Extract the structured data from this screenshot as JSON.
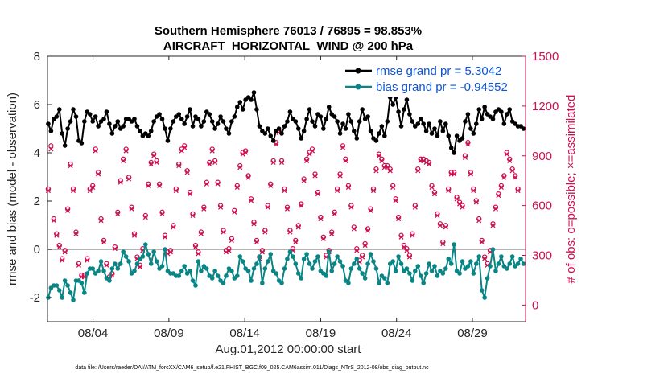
{
  "chart_data": {
    "type": "line",
    "title_line1": "Southern Hemisphere 76013 / 76895 = 98.853%",
    "title_line2": "AIRCRAFT_HORIZONTAL_WIND @ 200 hPa",
    "xlabel": "Aug.01,2012 00:00:00 start",
    "ylabel_left": "rmse and bias (model - observation)",
    "ylabel_right": "# of obs: o=possible; ×=assimilated",
    "footer": "data file: /Users/raeder/DAI/ATM_forcXX/CAM6_setup/f.e21.FHIST_BGC.f09_025.CAM6assim.011/Diags_NTrS_2012-08/obs_diag_output.nc",
    "x_range_days": [
      1.0,
      32.5
    ],
    "x_ticks": [
      {
        "day": 4,
        "label": "08/04"
      },
      {
        "day": 9,
        "label": "08/09"
      },
      {
        "day": 14,
        "label": "08/14"
      },
      {
        "day": 19,
        "label": "08/19"
      },
      {
        "day": 24,
        "label": "08/24"
      },
      {
        "day": 29,
        "label": "08/29"
      }
    ],
    "y_left": {
      "range": [
        -3,
        8
      ],
      "ticks": [
        "-2",
        "0",
        "2",
        "4",
        "6",
        "8"
      ]
    },
    "y_right": {
      "range": [
        -100,
        1500
      ],
      "ticks": [
        "0",
        "300",
        "600",
        "900",
        "1200",
        "1500"
      ]
    },
    "legend": [
      {
        "label": "rmse grand pr = 5.3042",
        "color": "#000000"
      },
      {
        "label": "bias grand pr = -0.94552",
        "color": "#0a8585"
      }
    ],
    "series": [
      {
        "name": "rmse",
        "color": "#000000",
        "values": [
          5.2,
          4.9,
          5.4,
          5.5,
          5.8,
          4.8,
          4.3,
          5.0,
          5.3,
          5.8,
          5.5,
          4.5,
          4.4,
          5.3,
          5.7,
          5.6,
          5.3,
          5.5,
          5.1,
          5.3,
          5.4,
          5.7,
          5.2,
          4.8,
          5.1,
          5.3,
          5.0,
          5.1,
          5.4,
          5.4,
          5.3,
          5.4,
          5.1,
          4.9,
          4.7,
          4.8,
          4.7,
          4.9,
          5.3,
          5.5,
          5.6,
          5.4,
          5.0,
          4.5,
          5.0,
          5.3,
          5.5,
          5.6,
          5.4,
          5.2,
          5.5,
          5.8,
          5.1,
          5.5,
          5.4,
          5.1,
          5.3,
          5.7,
          5.6,
          5.3,
          5.0,
          5.2,
          5.5,
          5.3,
          5.0,
          4.8,
          5.3,
          5.5,
          5.9,
          6.1,
          5.8,
          6.2,
          6.3,
          6.2,
          6.5,
          5.8,
          5.1,
          4.9,
          4.8,
          5.0,
          4.7,
          4.5,
          4.9,
          5.0,
          4.8,
          5.1,
          5.3,
          5.7,
          5.4,
          5.3,
          5.0,
          4.6,
          4.9,
          5.4,
          5.8,
          5.3,
          5.1,
          5.6,
          5.5,
          5.0,
          5.4,
          5.9,
          5.6,
          5.5,
          5.3,
          4.8,
          5.2,
          5.0,
          5.6,
          5.3,
          4.9,
          4.6,
          5.3,
          5.8,
          5.4,
          5.5,
          4.9,
          4.6,
          4.5,
          4.8,
          5.1,
          4.7,
          5.3,
          6.3,
          6.0,
          6.3,
          5.7,
          5.1,
          5.8,
          6.2,
          5.6,
          5.3,
          5.1,
          5.2,
          5.4,
          5.2,
          4.9,
          5.2,
          4.8,
          5.0,
          4.7,
          5.3,
          4.9,
          5.2,
          4.7,
          4.2,
          4.0,
          4.7,
          4.5,
          4.6,
          5.3,
          5.6,
          5.0,
          4.8,
          5.2,
          5.8,
          5.4,
          5.9,
          5.6,
          5.5,
          5.4,
          5.7,
          5.8,
          5.7,
          5.2,
          5.6,
          5.8,
          5.3,
          5.2,
          5.1,
          5.1,
          5.0
        ]
      },
      {
        "name": "bias",
        "color": "#0a8585",
        "values": [
          -2.0,
          -1.6,
          -1.5,
          -1.5,
          -1.7,
          -2.0,
          -1.3,
          -1.5,
          -1.8,
          -2.1,
          -1.3,
          -1.3,
          -1.4,
          -1.8,
          -1.0,
          -0.8,
          -0.8,
          -1.0,
          -0.9,
          -0.5,
          -0.9,
          -1.2,
          -1.3,
          -0.8,
          -0.6,
          -0.8,
          -0.6,
          -0.1,
          -0.3,
          -0.5,
          -1.0,
          -0.9,
          -0.6,
          -0.4,
          -0.3,
          0.2,
          -0.2,
          -0.6,
          -0.1,
          -0.5,
          -0.8,
          -0.7,
          0.0,
          -0.9,
          -1.0,
          -1.0,
          -1.1,
          -1.1,
          -0.9,
          -0.7,
          -1.0,
          -0.9,
          -1.3,
          -1.5,
          -0.5,
          -0.9,
          -0.7,
          -0.8,
          -1.1,
          -1.2,
          -0.9,
          -1.1,
          -1.3,
          -1.4,
          -1.1,
          -0.8,
          -0.9,
          -1.2,
          -1.1,
          -0.3,
          -0.5,
          -0.8,
          -0.9,
          -1.3,
          -0.8,
          -0.6,
          -0.3,
          -1.4,
          -0.8,
          -0.5,
          -0.2,
          -0.9,
          -1.0,
          -1.3,
          -1.4,
          -0.8,
          -0.4,
          -0.1,
          -0.3,
          -0.6,
          -1.0,
          -1.2,
          -0.4,
          -0.2,
          -0.6,
          -0.8,
          -0.5,
          -0.3,
          -0.9,
          -1.0,
          -1.1,
          -0.1,
          -0.9,
          -0.6,
          -0.3,
          -0.5,
          -0.7,
          -1.3,
          -1.4,
          -0.8,
          -0.6,
          -0.4,
          -0.8,
          -1.0,
          -1.2,
          -0.6,
          -0.2,
          -0.5,
          -0.8,
          -1.4,
          -1.1,
          -1.2,
          -1.4,
          -0.6,
          -0.5,
          -0.9,
          -0.3,
          -0.6,
          -0.9,
          -0.8,
          -1.0,
          -1.3,
          -0.9,
          -0.7,
          -1.1,
          -1.4,
          -1.0,
          -0.6,
          -0.9,
          -0.7,
          -1.1,
          -0.9,
          -1.0,
          -0.8,
          -0.4,
          -0.6,
          0.2,
          -0.9,
          -1.0,
          -0.5,
          -0.8,
          -0.7,
          -0.5,
          -1.0,
          -0.6,
          -0.3,
          -1.7,
          -2.0,
          -1.2,
          -0.7,
          0.0,
          -0.9,
          -0.6,
          -0.3,
          -0.7,
          -0.8,
          -0.6,
          -0.3,
          -0.7,
          -0.6,
          -0.4,
          -0.6
        ]
      },
      {
        "name": "obs_possible",
        "color": "#cc1150",
        "values": [
          700,
          960,
          520,
          430,
          360,
          280,
          330,
          580,
          850,
          700,
          440,
          250,
          180,
          180,
          280,
          700,
          720,
          940,
          800,
          520,
          390,
          250,
          170,
          190,
          350,
          560,
          750,
          880,
          940,
          770,
          590,
          430,
          290,
          240,
          340,
          540,
          730,
          860,
          910,
          870,
          730,
          560,
          420,
          320,
          330,
          480,
          700,
          850,
          940,
          960,
          810,
          680,
          550,
          360,
          320,
          440,
          590,
          740,
          860,
          940,
          870,
          740,
          600,
          450,
          330,
          340,
          400,
          570,
          720,
          840,
          920,
          930,
          780,
          640,
          500,
          390,
          290,
          330,
          450,
          600,
          730,
          870,
          980,
          1050,
          870,
          700,
          590,
          450,
          340,
          390,
          480,
          610,
          760,
          880,
          920,
          940,
          790,
          680,
          530,
          410,
          300,
          330,
          440,
          560,
          700,
          790,
          960,
          880,
          720,
          600,
          470,
          340,
          270,
          300,
          370,
          460,
          580,
          700,
          820,
          910,
          880,
          840,
          840,
          820,
          720,
          640,
          530,
          420,
          360,
          340,
          300,
          430,
          600,
          820,
          880,
          880,
          870,
          860,
          720,
          680,
          550,
          490,
          380,
          480,
          700,
          800,
          800,
          650,
          620,
          600,
          900,
          980,
          800,
          700,
          630,
          520,
          390,
          290,
          250,
          330,
          490,
          590,
          670,
          720,
          780,
          920,
          880,
          820,
          780,
          700
        ]
      },
      {
        "name": "obs_assimilated",
        "color": "#cc1150",
        "values": [
          690,
          940,
          510,
          420,
          350,
          270,
          320,
          570,
          840,
          690,
          430,
          240,
          170,
          170,
          270,
          690,
          710,
          930,
          790,
          510,
          380,
          240,
          160,
          180,
          340,
          550,
          740,
          870,
          930,
          760,
          580,
          420,
          280,
          230,
          330,
          530,
          720,
          850,
          900,
          860,
          720,
          550,
          410,
          310,
          320,
          470,
          690,
          840,
          930,
          950,
          800,
          670,
          540,
          350,
          310,
          430,
          580,
          730,
          850,
          930,
          860,
          730,
          590,
          440,
          320,
          330,
          390,
          560,
          710,
          830,
          910,
          920,
          770,
          630,
          490,
          380,
          280,
          320,
          440,
          590,
          720,
          860,
          970,
          1040,
          860,
          690,
          580,
          440,
          330,
          380,
          470,
          600,
          750,
          870,
          910,
          930,
          780,
          670,
          520,
          400,
          290,
          320,
          430,
          550,
          690,
          780,
          950,
          870,
          710,
          590,
          460,
          330,
          260,
          290,
          360,
          450,
          570,
          690,
          810,
          900,
          870,
          830,
          830,
          810,
          710,
          630,
          520,
          410,
          350,
          330,
          290,
          420,
          590,
          810,
          870,
          870,
          860,
          850,
          710,
          670,
          540,
          480,
          370,
          470,
          690,
          790,
          790,
          640,
          610,
          590,
          890,
          970,
          790,
          690,
          620,
          510,
          380,
          280,
          240,
          320,
          480,
          580,
          660,
          710,
          770,
          910,
          870,
          810,
          770,
          690
        ]
      }
    ]
  }
}
